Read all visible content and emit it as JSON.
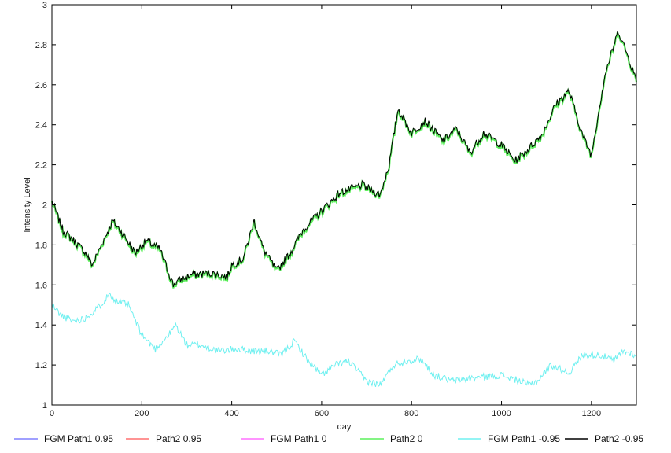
{
  "chart_data": {
    "type": "line",
    "title": "",
    "xlabel": "day",
    "ylabel": "Intensity Level",
    "xlim": [
      0,
      1300
    ],
    "ylim": [
      1,
      3
    ],
    "xticks": [
      0,
      200,
      400,
      600,
      800,
      1000,
      1200
    ],
    "yticks": [
      1,
      1.2,
      1.4,
      1.6,
      1.8,
      2,
      2.2,
      2.4,
      2.6,
      2.8,
      3
    ],
    "grid": false,
    "legend_position": "bottom",
    "series": [
      {
        "name": "FGM Path1 0.95",
        "color": "#8080ff",
        "values": []
      },
      {
        "name": "Path2 0.95",
        "color": "#ff7070",
        "values": []
      },
      {
        "name": "FGM Path1 0",
        "color": "#ff70ff",
        "values": []
      },
      {
        "name": "Path2 0",
        "color": "#5cf05c",
        "x": [
          0,
          25,
          50,
          75,
          90,
          110,
          135,
          160,
          185,
          210,
          240,
          270,
          280,
          310,
          350,
          390,
          400,
          425,
          450,
          470,
          500,
          530,
          560,
          600,
          640,
          690,
          730,
          750,
          770,
          800,
          830,
          870,
          900,
          930,
          960,
          1000,
          1030,
          1060,
          1090,
          1120,
          1150,
          1180,
          1200,
          1230,
          1260,
          1280,
          1300
        ],
        "values": [
          2.02,
          1.87,
          1.82,
          1.76,
          1.7,
          1.8,
          1.92,
          1.85,
          1.76,
          1.82,
          1.78,
          1.6,
          1.62,
          1.65,
          1.66,
          1.64,
          1.7,
          1.73,
          1.92,
          1.78,
          1.67,
          1.76,
          1.88,
          1.97,
          2.06,
          2.1,
          2.05,
          2.2,
          2.48,
          2.36,
          2.42,
          2.32,
          2.38,
          2.26,
          2.36,
          2.3,
          2.22,
          2.28,
          2.35,
          2.5,
          2.57,
          2.35,
          2.25,
          2.65,
          2.87,
          2.75,
          2.62
        ]
      },
      {
        "name": "FGM Path1 -0.95",
        "color": "#70f0f0",
        "x": [
          0,
          20,
          45,
          70,
          100,
          130,
          140,
          170,
          200,
          230,
          260,
          275,
          300,
          330,
          370,
          410,
          450,
          480,
          510,
          540,
          570,
          600,
          630,
          660,
          700,
          730,
          760,
          790,
          820,
          850,
          890,
          920,
          960,
          1000,
          1040,
          1060,
          1080,
          1110,
          1150,
          1180,
          1220,
          1250,
          1270,
          1300
        ],
        "values": [
          1.5,
          1.45,
          1.42,
          1.43,
          1.48,
          1.56,
          1.52,
          1.5,
          1.35,
          1.28,
          1.35,
          1.4,
          1.3,
          1.3,
          1.27,
          1.28,
          1.27,
          1.27,
          1.25,
          1.32,
          1.22,
          1.15,
          1.2,
          1.22,
          1.12,
          1.1,
          1.2,
          1.22,
          1.23,
          1.15,
          1.12,
          1.13,
          1.14,
          1.15,
          1.12,
          1.1,
          1.12,
          1.2,
          1.16,
          1.25,
          1.25,
          1.22,
          1.27,
          1.25
        ]
      },
      {
        "name": "Path2 -0.95",
        "color": "#000000",
        "x": [
          0,
          25,
          50,
          75,
          90,
          110,
          135,
          160,
          185,
          210,
          240,
          270,
          280,
          310,
          350,
          390,
          400,
          425,
          450,
          470,
          500,
          530,
          560,
          600,
          640,
          690,
          730,
          750,
          770,
          800,
          830,
          870,
          900,
          930,
          960,
          1000,
          1030,
          1060,
          1090,
          1120,
          1150,
          1180,
          1200,
          1230,
          1260,
          1280,
          1300
        ],
        "values": [
          2.02,
          1.87,
          1.82,
          1.76,
          1.7,
          1.8,
          1.92,
          1.85,
          1.76,
          1.82,
          1.78,
          1.6,
          1.62,
          1.65,
          1.66,
          1.64,
          1.7,
          1.73,
          1.92,
          1.78,
          1.67,
          1.76,
          1.88,
          1.97,
          2.06,
          2.1,
          2.05,
          2.2,
          2.48,
          2.36,
          2.42,
          2.32,
          2.38,
          2.26,
          2.36,
          2.3,
          2.22,
          2.28,
          2.35,
          2.5,
          2.57,
          2.35,
          2.25,
          2.65,
          2.87,
          2.75,
          2.62
        ]
      }
    ]
  }
}
